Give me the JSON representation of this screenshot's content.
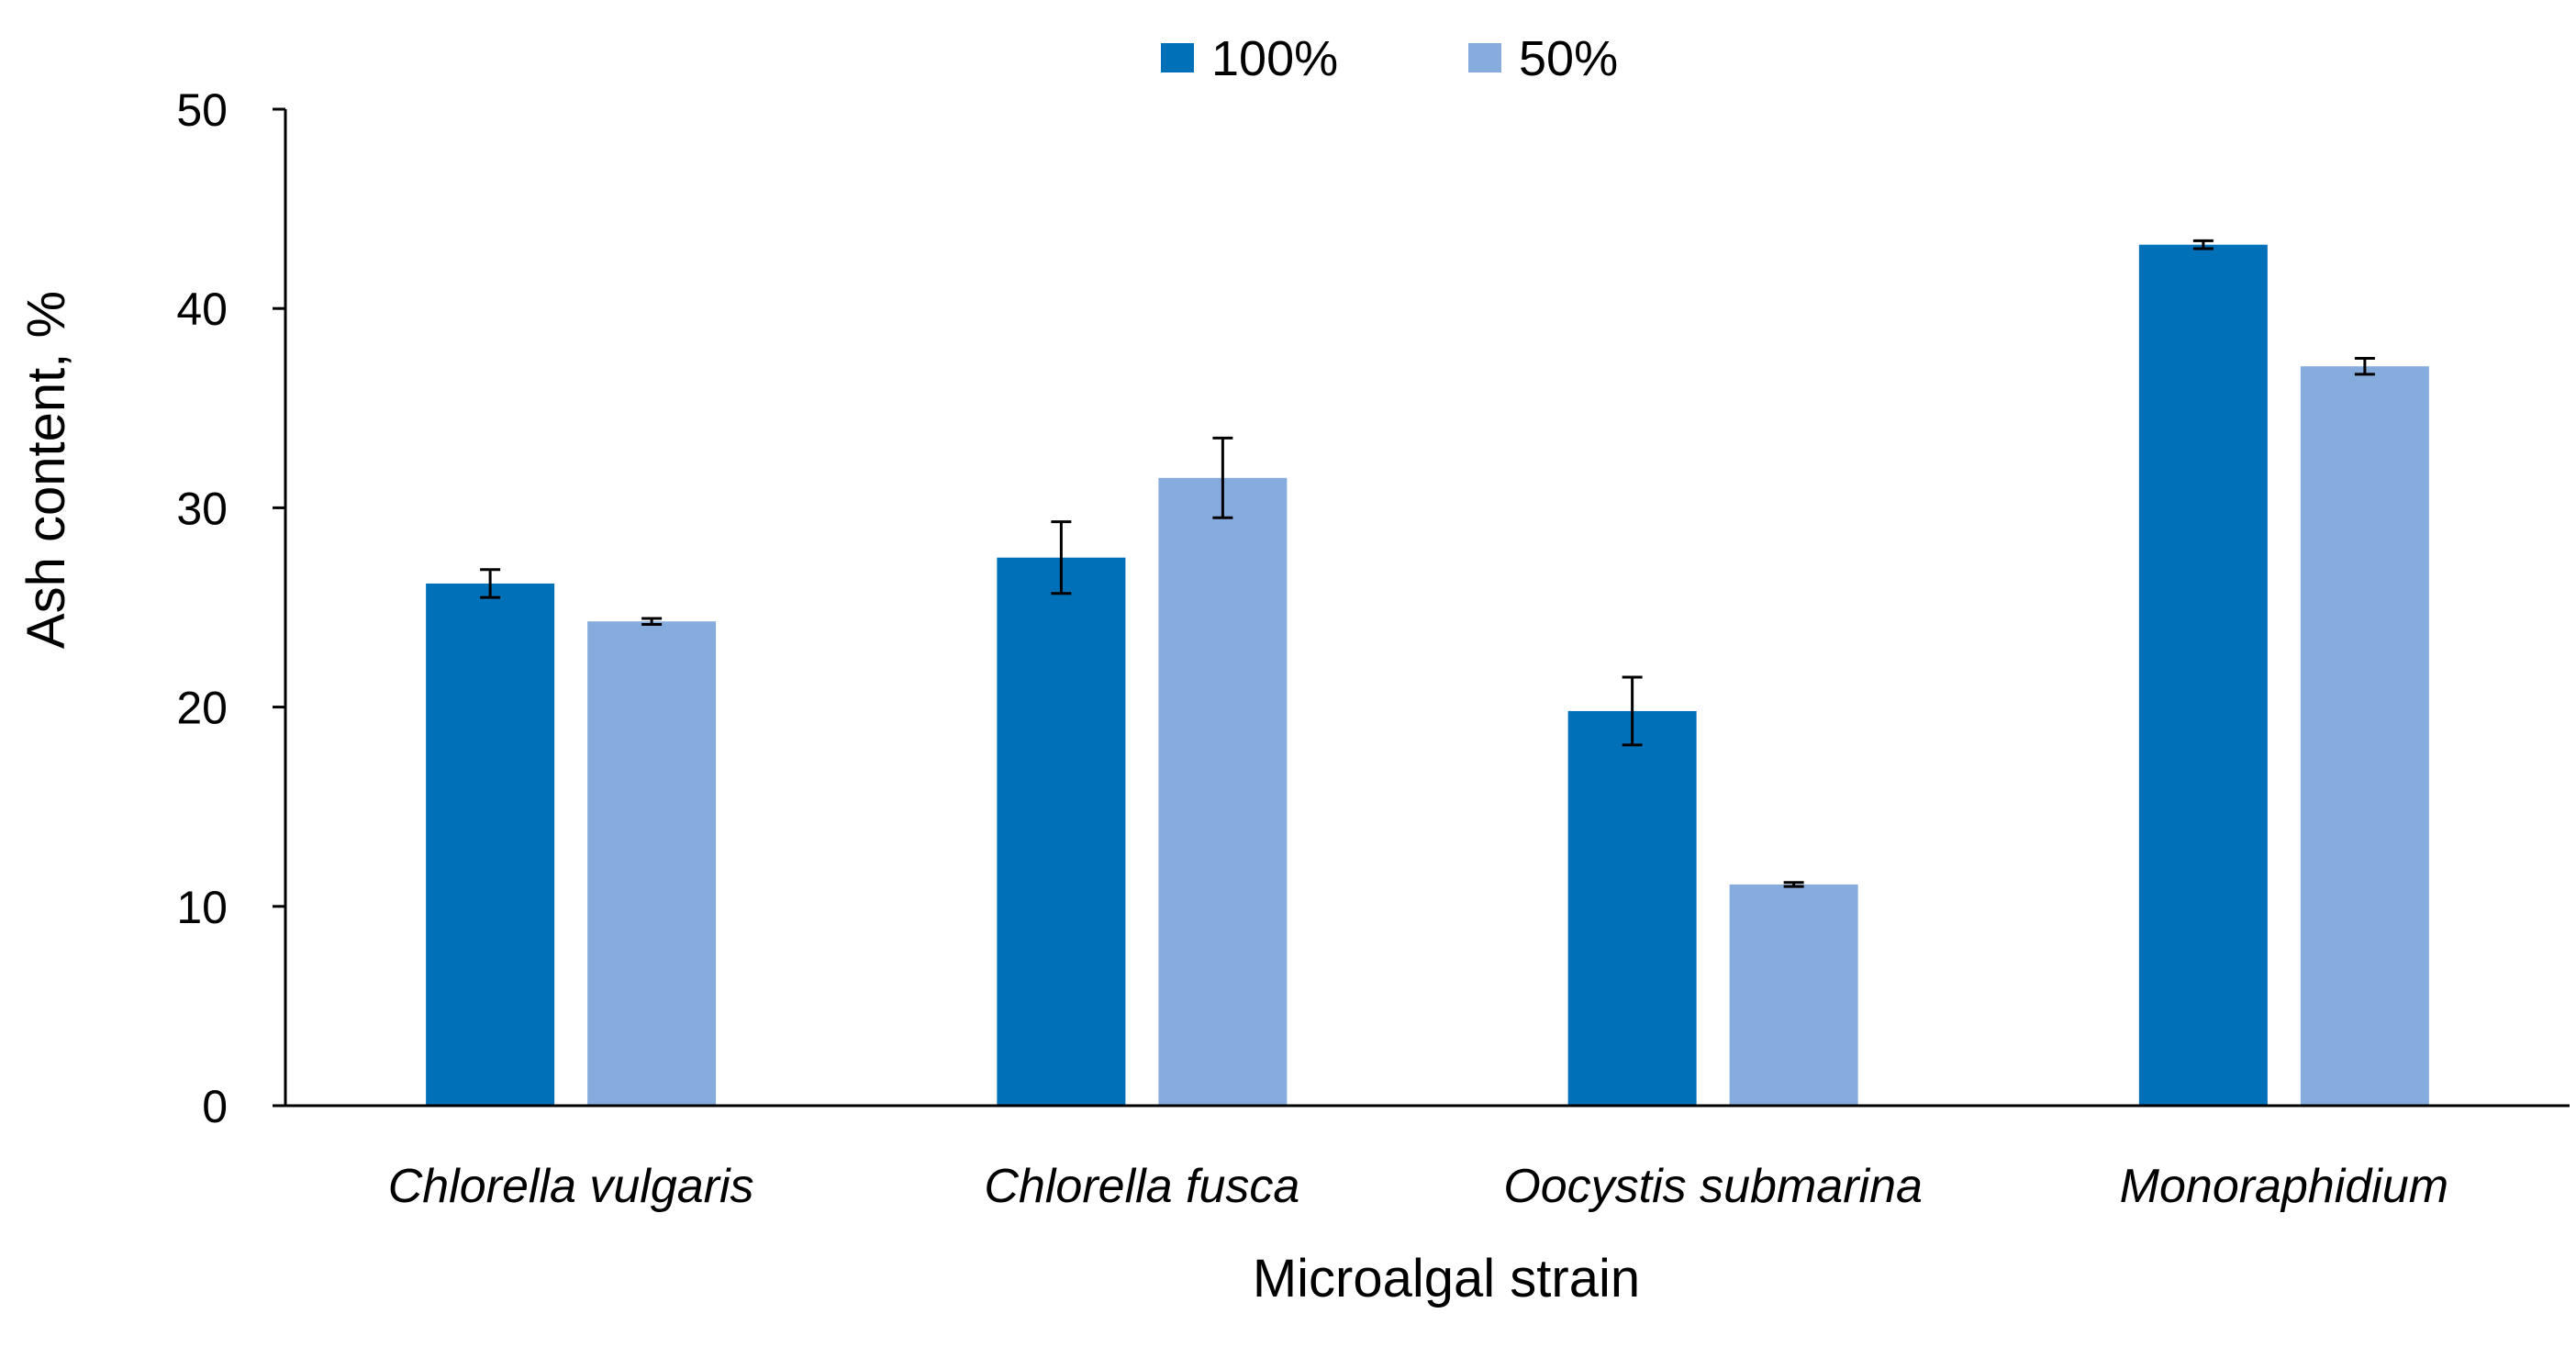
{
  "chart_data": {
    "type": "bar",
    "title": "",
    "xlabel": "Microalgal strain",
    "ylabel": "Ash content, %",
    "ylim": [
      0,
      50
    ],
    "yticks": [
      0,
      10,
      20,
      30,
      40,
      50
    ],
    "grid": false,
    "legend_position": "top-center",
    "categories": [
      "Chlorella vulgaris",
      "Chlorella fusca",
      "Oocystis submarina",
      "Monoraphidium"
    ],
    "series": [
      {
        "name": "100%",
        "color": "#0070b8",
        "values": [
          26.2,
          27.5,
          19.8,
          43.2
        ],
        "errors": [
          0.7,
          1.8,
          1.7,
          0.2
        ]
      },
      {
        "name": "50%",
        "color": "#86acdd",
        "values": [
          24.3,
          31.5,
          11.1,
          37.1
        ],
        "errors": [
          0.15,
          2.0,
          0.1,
          0.4
        ]
      }
    ]
  }
}
